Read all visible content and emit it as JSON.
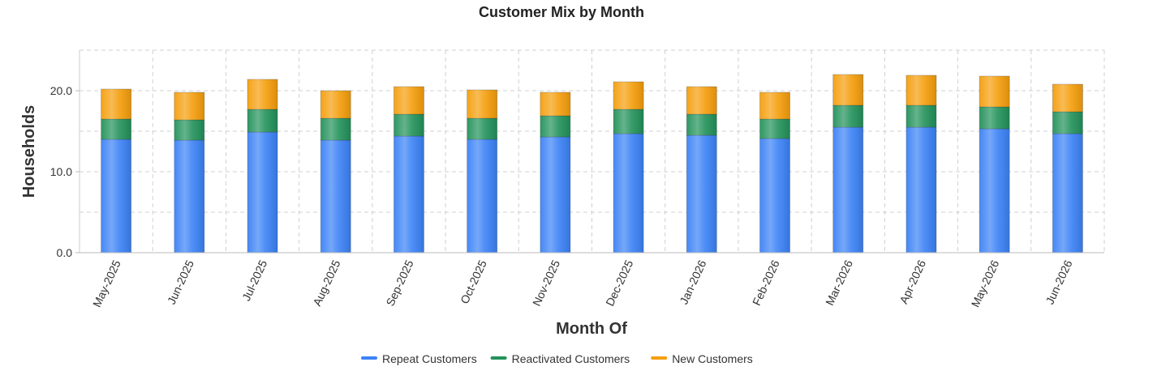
{
  "chart_data": {
    "type": "bar",
    "stacked": true,
    "title": "Customer Mix by Month",
    "xlabel": "Month Of",
    "ylabel": "Households",
    "ylim": [
      0,
      25
    ],
    "y_ticks": [
      "0.0",
      "10.0",
      "20.0"
    ],
    "y_tick_values": [
      0,
      10,
      20
    ],
    "grid": true,
    "legend_position": "bottom-center",
    "categories": [
      "May-2025",
      "Jun-2025",
      "Jul-2025",
      "Aug-2025",
      "Sep-2025",
      "Oct-2025",
      "Nov-2025",
      "Dec-2025",
      "Jan-2026",
      "Feb-2026",
      "Mar-2026",
      "Apr-2026",
      "May-2026",
      "Jun-2026"
    ],
    "series": [
      {
        "name": "Repeat Customers",
        "color": "#3b82f6",
        "values": [
          14.0,
          13.9,
          14.9,
          13.9,
          14.4,
          14.0,
          14.3,
          14.7,
          14.5,
          14.1,
          15.5,
          15.5,
          15.3,
          14.7
        ]
      },
      {
        "name": "Reactivated Customers",
        "color": "#22925a",
        "values": [
          2.5,
          2.5,
          2.8,
          2.7,
          2.7,
          2.6,
          2.6,
          3.0,
          2.6,
          2.4,
          2.7,
          2.7,
          2.7,
          2.7
        ]
      },
      {
        "name": "New Customers",
        "color": "#f59e0b",
        "values": [
          3.7,
          3.4,
          3.7,
          3.4,
          3.4,
          3.5,
          2.9,
          3.4,
          3.4,
          3.3,
          3.8,
          3.7,
          3.8,
          3.4
        ]
      }
    ]
  }
}
